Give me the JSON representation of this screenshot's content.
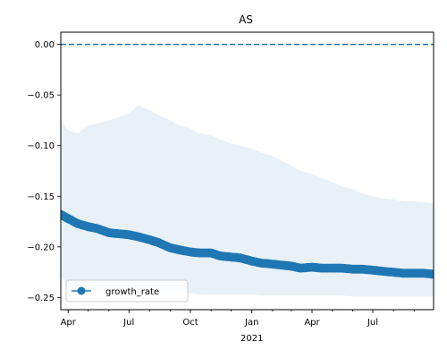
{
  "chart_data": {
    "type": "line",
    "title": "AS",
    "xlabel": "",
    "ylabel": "",
    "x_range": [
      "2020-03-21",
      "2021-09-30"
    ],
    "ylim": [
      -0.262,
      0.012
    ],
    "x_ticks": [
      {
        "date": "2020-04-01",
        "label": "Apr"
      },
      {
        "date": "2020-07-01",
        "label": "Jul"
      },
      {
        "date": "2020-10-01",
        "label": "Oct"
      },
      {
        "date": "2021-01-01",
        "label": "Jan"
      },
      {
        "date": "2021-04-01",
        "label": "Apr"
      },
      {
        "date": "2021-07-01",
        "label": "Jul"
      }
    ],
    "x_year_label": {
      "date": "2021-01-01",
      "label": "2021"
    },
    "y_ticks": [
      0.0,
      -0.05,
      -0.1,
      -0.15,
      -0.2,
      -0.25
    ],
    "y_tick_labels": [
      "0.00",
      "−0.05",
      "−0.10",
      "−0.15",
      "−0.20",
      "−0.25"
    ],
    "reference_line": {
      "y": 0.0,
      "style": "dashed",
      "color": "#1f77b4"
    },
    "legend": {
      "placement": "lower-left",
      "entries": [
        "growth_rate"
      ]
    },
    "series": [
      {
        "name": "growth_rate",
        "color": "#1f77b4",
        "marker": "circle",
        "x": [
          "2020-03-21",
          "2020-04-01",
          "2020-04-15",
          "2020-05-01",
          "2020-05-15",
          "2020-06-01",
          "2020-06-15",
          "2020-07-01",
          "2020-07-15",
          "2020-08-01",
          "2020-08-15",
          "2020-09-01",
          "2020-09-15",
          "2020-10-01",
          "2020-10-15",
          "2020-11-01",
          "2020-11-15",
          "2020-12-01",
          "2020-12-15",
          "2021-01-01",
          "2021-01-15",
          "2021-02-01",
          "2021-02-15",
          "2021-03-01",
          "2021-03-15",
          "2021-04-01",
          "2021-04-15",
          "2021-05-01",
          "2021-05-15",
          "2021-06-01",
          "2021-06-15",
          "2021-07-01",
          "2021-07-15",
          "2021-08-01",
          "2021-08-15",
          "2021-09-01",
          "2021-09-15",
          "2021-09-30"
        ],
        "y": [
          -0.168,
          -0.172,
          -0.177,
          -0.18,
          -0.182,
          -0.186,
          -0.187,
          -0.188,
          -0.19,
          -0.193,
          -0.196,
          -0.201,
          -0.203,
          -0.205,
          -0.206,
          -0.206,
          -0.209,
          -0.21,
          -0.211,
          -0.214,
          -0.216,
          -0.217,
          -0.218,
          -0.219,
          -0.221,
          -0.22,
          -0.221,
          -0.221,
          -0.221,
          -0.222,
          -0.222,
          -0.223,
          -0.224,
          -0.225,
          -0.226,
          -0.226,
          -0.226,
          -0.227
        ]
      }
    ],
    "band": {
      "color": "#1f77b4",
      "opacity": 0.1,
      "x": [
        "2020-03-21",
        "2020-04-01",
        "2020-04-15",
        "2020-05-01",
        "2020-05-15",
        "2020-06-01",
        "2020-06-15",
        "2020-07-01",
        "2020-07-15",
        "2020-08-01",
        "2020-08-15",
        "2020-09-01",
        "2020-09-15",
        "2020-10-01",
        "2020-10-15",
        "2020-11-01",
        "2020-11-15",
        "2020-12-01",
        "2020-12-15",
        "2021-01-01",
        "2021-01-15",
        "2021-02-01",
        "2021-02-15",
        "2021-03-01",
        "2021-03-15",
        "2021-04-01",
        "2021-04-15",
        "2021-05-01",
        "2021-05-15",
        "2021-06-01",
        "2021-06-15",
        "2021-07-01",
        "2021-07-15",
        "2021-08-01",
        "2021-08-15",
        "2021-09-01",
        "2021-09-15",
        "2021-09-30"
      ],
      "upper": [
        -0.075,
        -0.085,
        -0.088,
        -0.08,
        -0.078,
        -0.075,
        -0.072,
        -0.068,
        -0.06,
        -0.065,
        -0.07,
        -0.075,
        -0.08,
        -0.083,
        -0.088,
        -0.09,
        -0.094,
        -0.098,
        -0.1,
        -0.103,
        -0.107,
        -0.11,
        -0.115,
        -0.12,
        -0.125,
        -0.128,
        -0.132,
        -0.136,
        -0.14,
        -0.143,
        -0.147,
        -0.15,
        -0.152,
        -0.153,
        -0.155,
        -0.155,
        -0.156,
        -0.157
      ],
      "lower": [
        -0.23,
        -0.238,
        -0.242,
        -0.243,
        -0.244,
        -0.244,
        -0.245,
        -0.245,
        -0.245,
        -0.246,
        -0.246,
        -0.246,
        -0.246,
        -0.246,
        -0.247,
        -0.247,
        -0.247,
        -0.247,
        -0.247,
        -0.247,
        -0.248,
        -0.248,
        -0.248,
        -0.248,
        -0.248,
        -0.248,
        -0.248,
        -0.248,
        -0.248,
        -0.249,
        -0.249,
        -0.249,
        -0.249,
        -0.249,
        -0.249,
        -0.249,
        -0.249,
        -0.249
      ]
    }
  }
}
